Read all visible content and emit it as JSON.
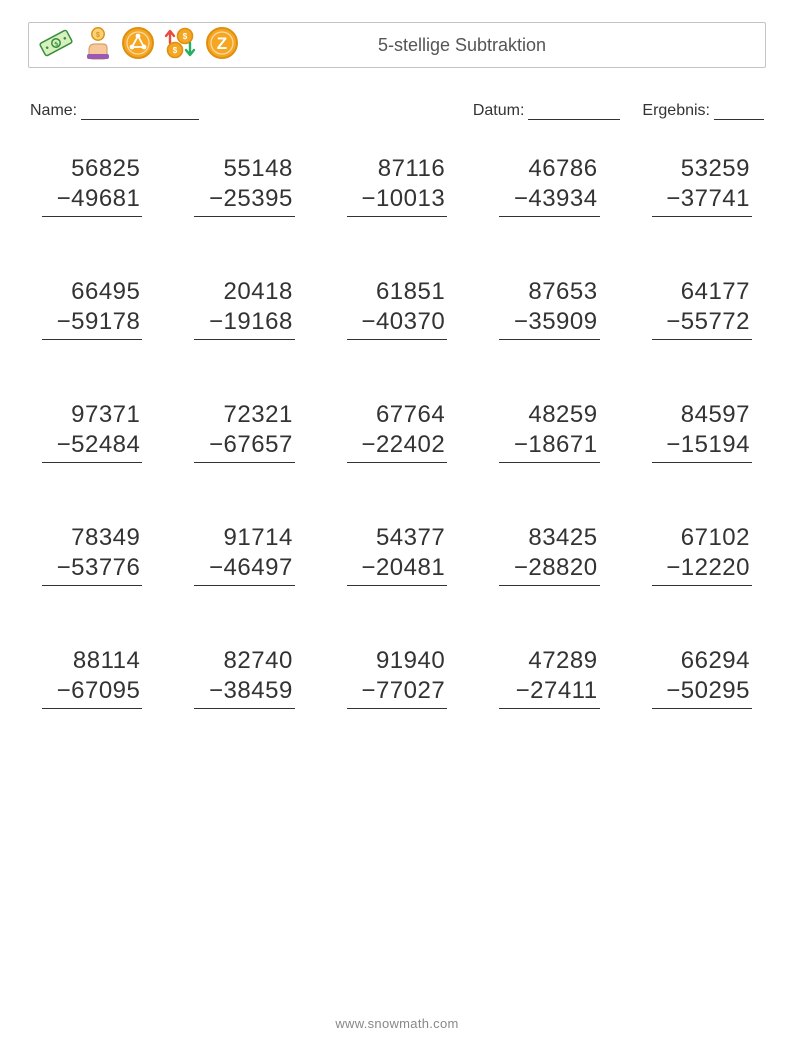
{
  "colors": {
    "text": "#333333",
    "border_box": "#c4c4c4",
    "muted": "#888888",
    "coin_gold": "#f5a623",
    "coin_gold_dark": "#e09010",
    "bill_green": "#7cb342",
    "bill_outline": "#388e3c",
    "arrow_up": "#e74c3c",
    "arrow_down": "#27ae60",
    "skin": "#f6c89a",
    "sleeve": "#9b59b6"
  },
  "header": {
    "title": "5-stellige Subtraktion",
    "icons": [
      "dollar-bill-icon",
      "hand-coin-icon",
      "ripple-coin-icon",
      "coin-arrows-icon",
      "z-coin-icon"
    ]
  },
  "meta": {
    "name_label": "Name:",
    "name_blank_width": 118,
    "date_label": "Datum:",
    "date_blank_width": 92,
    "result_label": "Ergebnis:",
    "result_blank_width": 50
  },
  "worksheet": {
    "type": "subtraction-grid",
    "columns": 5,
    "rows": 5,
    "font_size": 24,
    "minus_sign": "−",
    "problems": [
      {
        "a": "56825",
        "b": "49681"
      },
      {
        "a": "55148",
        "b": "25395"
      },
      {
        "a": "87116",
        "b": "10013"
      },
      {
        "a": "46786",
        "b": "43934"
      },
      {
        "a": "53259",
        "b": "37741"
      },
      {
        "a": "66495",
        "b": "59178"
      },
      {
        "a": "20418",
        "b": "19168"
      },
      {
        "a": "61851",
        "b": "40370"
      },
      {
        "a": "87653",
        "b": "35909"
      },
      {
        "a": "64177",
        "b": "55772"
      },
      {
        "a": "97371",
        "b": "52484"
      },
      {
        "a": "72321",
        "b": "67657"
      },
      {
        "a": "67764",
        "b": "22402"
      },
      {
        "a": "48259",
        "b": "18671"
      },
      {
        "a": "84597",
        "b": "15194"
      },
      {
        "a": "78349",
        "b": "53776"
      },
      {
        "a": "91714",
        "b": "46497"
      },
      {
        "a": "54377",
        "b": "20481"
      },
      {
        "a": "83425",
        "b": "28820"
      },
      {
        "a": "67102",
        "b": "12220"
      },
      {
        "a": "88114",
        "b": "67095"
      },
      {
        "a": "82740",
        "b": "38459"
      },
      {
        "a": "91940",
        "b": "77027"
      },
      {
        "a": "47289",
        "b": "27411"
      },
      {
        "a": "66294",
        "b": "50295"
      }
    ]
  },
  "footer": {
    "text": "www.snowmath.com"
  }
}
